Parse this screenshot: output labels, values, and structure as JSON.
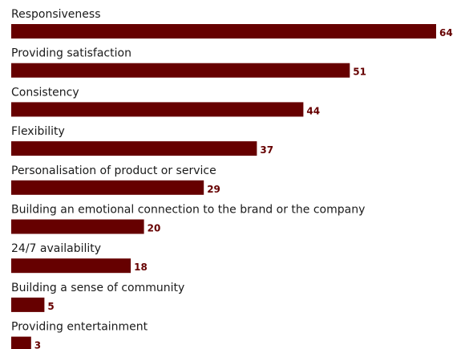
{
  "chart_data": {
    "type": "bar",
    "orientation": "horizontal",
    "categories": [
      "Responsiveness",
      "Providing satisfaction",
      "Consistency",
      "Flexibility",
      "Personalisation of product or service",
      "Building an emotional connection to the brand or the company",
      "24/7 availability",
      "Building a sense of community",
      "Providing entertainment"
    ],
    "values": [
      64,
      51,
      44,
      37,
      29,
      20,
      18,
      5,
      3
    ],
    "value_labels": [
      "64",
      "51",
      "44",
      "37",
      "29",
      "20",
      "18",
      "5",
      "3"
    ],
    "xlim": [
      0,
      64
    ],
    "bar_color": "#660000",
    "title": "",
    "xlabel": "",
    "ylabel": "",
    "grid": false
  }
}
